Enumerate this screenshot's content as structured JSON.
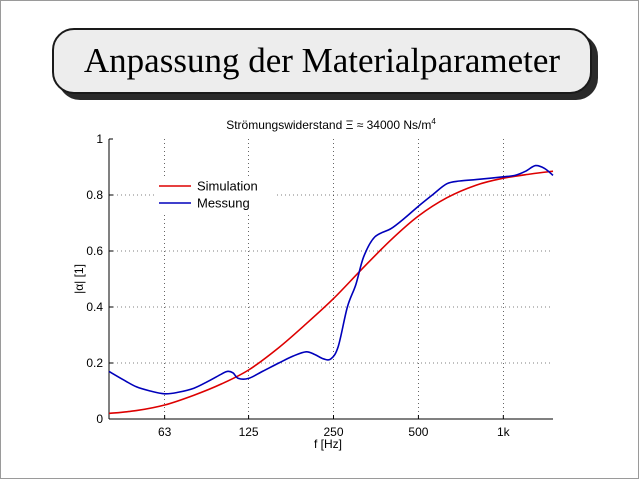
{
  "slide": {
    "title": "Anpassung der Materialparameter"
  },
  "chart_data": {
    "type": "line",
    "title": "Strömungswiderstand Ξ ≈ 34000 Ns/m",
    "title_superscript": "4",
    "xlabel": "f [Hz]",
    "ylabel": "|α| [1]",
    "x_scale": "log",
    "xlim": [
      40,
      1500
    ],
    "ylim": [
      0,
      1
    ],
    "x_ticks": [
      63,
      125,
      250,
      500,
      1000
    ],
    "x_tick_labels": [
      "63",
      "125",
      "250",
      "500",
      "1k"
    ],
    "y_ticks": [
      0,
      0.2,
      0.4,
      0.6,
      0.8,
      1
    ],
    "y_tick_labels": [
      "0",
      "0.2",
      "0.4",
      "0.6",
      "0.8",
      "1"
    ],
    "grid": true,
    "legend_position": "top-left",
    "series": [
      {
        "name": "Simulation",
        "color": "#dd0000",
        "x": [
          40,
          50,
          63,
          80,
          100,
          125,
          160,
          200,
          250,
          315,
          400,
          500,
          630,
          800,
          1000,
          1250,
          1500
        ],
        "y": [
          0.02,
          0.03,
          0.05,
          0.085,
          0.125,
          0.175,
          0.255,
          0.34,
          0.43,
          0.535,
          0.64,
          0.725,
          0.79,
          0.835,
          0.86,
          0.875,
          0.885
        ]
      },
      {
        "name": "Messung",
        "color": "#0000bb",
        "x": [
          40,
          45,
          50,
          56,
          63,
          70,
          80,
          90,
          100,
          105,
          110,
          115,
          125,
          140,
          160,
          180,
          200,
          215,
          230,
          245,
          260,
          280,
          300,
          320,
          350,
          400,
          450,
          500,
          560,
          630,
          700,
          800,
          900,
          1000,
          1100,
          1200,
          1300,
          1400,
          1500
        ],
        "y": [
          0.17,
          0.14,
          0.115,
          0.1,
          0.09,
          0.095,
          0.11,
          0.135,
          0.16,
          0.17,
          0.165,
          0.145,
          0.145,
          0.17,
          0.2,
          0.225,
          0.24,
          0.23,
          0.215,
          0.215,
          0.26,
          0.4,
          0.48,
          0.58,
          0.65,
          0.68,
          0.72,
          0.76,
          0.8,
          0.84,
          0.85,
          0.855,
          0.86,
          0.865,
          0.87,
          0.885,
          0.905,
          0.895,
          0.87
        ]
      }
    ]
  }
}
